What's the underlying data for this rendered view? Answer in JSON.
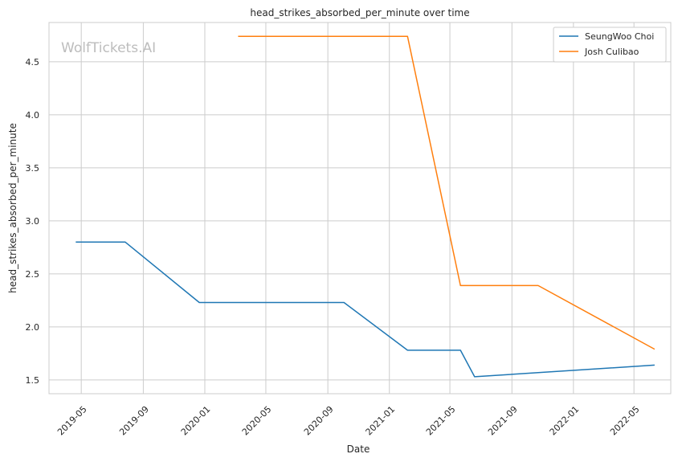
{
  "chart_data": {
    "type": "line",
    "title": "head_strikes_absorbed_per_minute over time",
    "xlabel": "Date",
    "ylabel": "head_strikes_absorbed_per_minute",
    "watermark": "WolfTickets.AI",
    "x_ticks": [
      "2019-05",
      "2019-09",
      "2020-01",
      "2020-05",
      "2020-09",
      "2021-01",
      "2021-05",
      "2021-09",
      "2022-01",
      "2022-05"
    ],
    "y_ticks": [
      "1.5",
      "2.0",
      "2.5",
      "3.0",
      "3.5",
      "4.0",
      "4.5"
    ],
    "xlim": [
      "2019-02-26",
      "2022-07-13"
    ],
    "ylim": [
      1.37,
      4.87
    ],
    "grid": true,
    "legend": "top-right",
    "colors": {
      "series1": "#1f77b4",
      "series2": "#ff7f0e",
      "grid": "#cccccc",
      "axes": "#cccccc"
    },
    "series": [
      {
        "name": "SeungWoo Choi",
        "x": [
          "2019-04-20",
          "2019-07-27",
          "2019-12-21",
          "2020-10-03",
          "2021-02-06",
          "2021-05-22",
          "2021-06-19",
          "2022-06-11"
        ],
        "y": [
          2.8,
          2.8,
          2.23,
          2.23,
          1.78,
          1.78,
          1.53,
          1.64
        ]
      },
      {
        "name": "Josh Culibao",
        "x": [
          "2020-03-07",
          "2021-02-06",
          "2021-05-22",
          "2021-10-23",
          "2022-06-11"
        ],
        "y": [
          4.74,
          4.74,
          2.39,
          2.39,
          1.79
        ]
      }
    ]
  }
}
